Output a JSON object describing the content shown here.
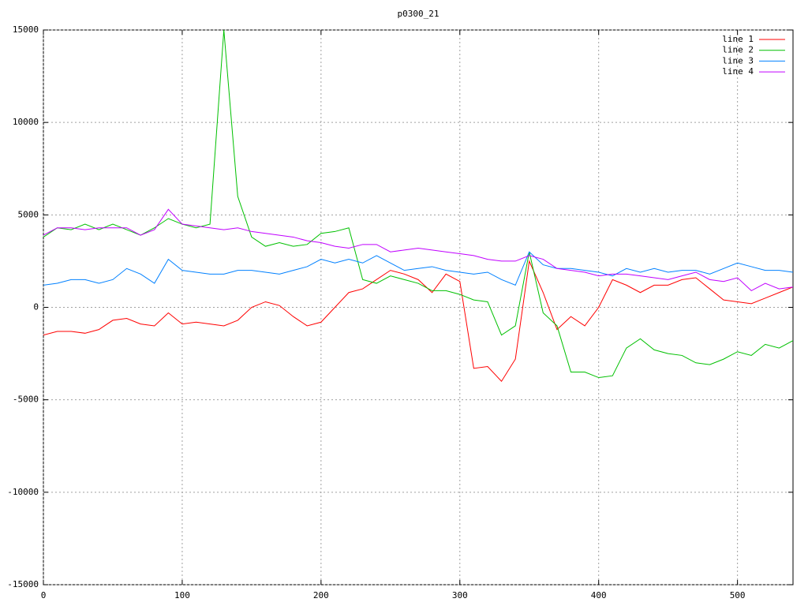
{
  "chart_data": {
    "type": "line",
    "title": "p0300_21",
    "x": [
      0,
      10,
      20,
      30,
      40,
      50,
      60,
      70,
      80,
      90,
      100,
      110,
      120,
      130,
      140,
      150,
      160,
      170,
      180,
      190,
      200,
      210,
      220,
      230,
      240,
      250,
      260,
      270,
      280,
      290,
      300,
      310,
      320,
      330,
      340,
      350,
      360,
      370,
      380,
      390,
      400,
      410,
      420,
      430,
      440,
      450,
      460,
      470,
      480,
      490,
      500,
      510,
      520,
      530,
      540
    ],
    "series": [
      {
        "name": "line 1",
        "color": "#ff0000",
        "values": [
          -1500,
          -1300,
          -1300,
          -1400,
          -1200,
          -700,
          -600,
          -900,
          -1000,
          -300,
          -900,
          -800,
          -900,
          -1000,
          -700,
          0,
          300,
          100,
          -500,
          -1000,
          -800,
          0,
          800,
          1000,
          1500,
          2000,
          1800,
          1500,
          800,
          1800,
          1400,
          -3300,
          -3200,
          -4000,
          -2800,
          2500,
          800,
          -1200,
          -500,
          -1000,
          0,
          1500,
          1200,
          800,
          1200,
          1200,
          1500,
          1600,
          1000,
          400,
          300,
          200,
          500,
          800,
          1100
        ]
      },
      {
        "name": "line 2",
        "color": "#00c000",
        "values": [
          3800,
          4300,
          4200,
          4500,
          4200,
          4500,
          4200,
          3900,
          4300,
          4800,
          4500,
          4300,
          4500,
          15000,
          6000,
          3800,
          3300,
          3500,
          3300,
          3400,
          4000,
          4100,
          4300,
          1500,
          1300,
          1700,
          1500,
          1300,
          900,
          900,
          700,
          400,
          300,
          -1500,
          -1000,
          3000,
          -300,
          -1000,
          -3500,
          -3500,
          -3800,
          -3700,
          -2200,
          -1700,
          -2300,
          -2500,
          -2600,
          -3000,
          -3100,
          -2800,
          -2400,
          -2600,
          -2000,
          -2200,
          -1800
        ]
      },
      {
        "name": "line 3",
        "color": "#0080ff",
        "values": [
          1200,
          1300,
          1500,
          1500,
          1300,
          1500,
          2100,
          1800,
          1300,
          2600,
          2000,
          1900,
          1800,
          1800,
          2000,
          2000,
          1900,
          1800,
          2000,
          2200,
          2600,
          2400,
          2600,
          2400,
          2800,
          2400,
          2000,
          2100,
          2200,
          2000,
          1900,
          1800,
          1900,
          1500,
          1200,
          3000,
          2300,
          2100,
          2100,
          2000,
          1900,
          1700,
          2100,
          1900,
          2100,
          1900,
          2000,
          2000,
          1800,
          2100,
          2400,
          2200,
          2000,
          2000,
          1900
        ]
      },
      {
        "name": "line 4",
        "color": "#c000ff",
        "values": [
          3900,
          4300,
          4300,
          4200,
          4300,
          4300,
          4300,
          3900,
          4200,
          5300,
          4500,
          4400,
          4300,
          4200,
          4300,
          4100,
          4000,
          3900,
          3800,
          3600,
          3500,
          3300,
          3200,
          3400,
          3400,
          3000,
          3100,
          3200,
          3100,
          3000,
          2900,
          2800,
          2600,
          2500,
          2500,
          2800,
          2600,
          2100,
          2000,
          1900,
          1700,
          1800,
          1800,
          1700,
          1600,
          1500,
          1700,
          1900,
          1500,
          1400,
          1600,
          900,
          1300,
          1000,
          1100
        ]
      }
    ],
    "xlim": [
      0,
      540
    ],
    "ylim": [
      -15000,
      15000
    ],
    "xticks": [
      0,
      100,
      200,
      300,
      400,
      500
    ],
    "yticks": [
      -15000,
      -10000,
      -5000,
      0,
      5000,
      10000,
      15000
    ],
    "grid": true,
    "legend": "top-right"
  }
}
